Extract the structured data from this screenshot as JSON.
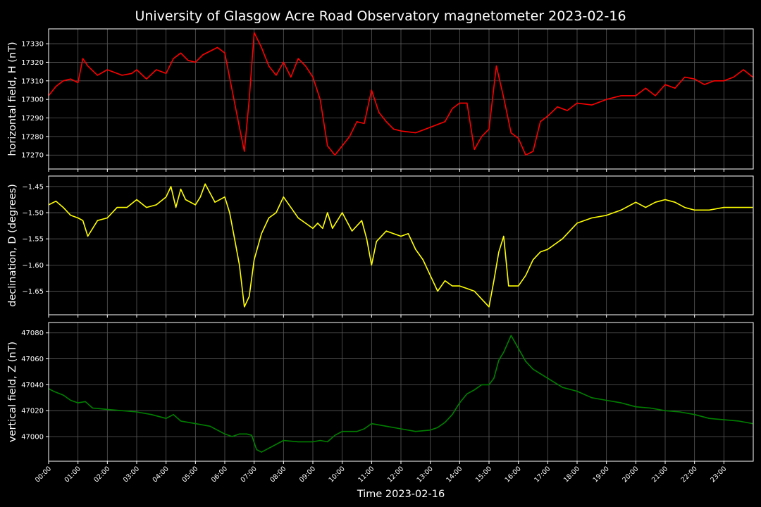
{
  "chart_data": {
    "type": "line",
    "title": "University of Glasgow Acre Road Observatory magnetometer 2023-02-16",
    "xlabel": "Time 2023-02-16",
    "x_ticks": [
      "00:00",
      "01:00",
      "02:00",
      "03:00",
      "04:00",
      "05:00",
      "06:00",
      "07:00",
      "08:00",
      "09:00",
      "10:00",
      "11:00",
      "12:00",
      "13:00",
      "14:00",
      "15:00",
      "16:00",
      "17:00",
      "18:00",
      "19:00",
      "20:00",
      "21:00",
      "22:00",
      "23:00"
    ],
    "xlim": [
      "00:00",
      "24:00"
    ],
    "grid": true,
    "panels": [
      {
        "ylabel": "horizontal field, H (nT)",
        "color": "#ff0000",
        "ylim": [
          17262.5,
          17338
        ],
        "y_ticks": [
          17270,
          17280,
          17290,
          17300,
          17310,
          17320,
          17330
        ],
        "series": [
          {
            "x": [
              "00:00",
              "00:15",
              "00:30",
              "00:45",
              "01:00",
              "01:10",
              "01:20",
              "01:40",
              "02:00",
              "02:30",
              "02:50",
              "03:00",
              "03:20",
              "03:40",
              "04:00",
              "04:15",
              "04:30",
              "04:45",
              "05:00",
              "05:15",
              "05:30",
              "05:45",
              "06:00",
              "06:15",
              "06:30",
              "06:40",
              "06:50",
              "07:00",
              "07:15",
              "07:30",
              "07:45",
              "08:00",
              "08:15",
              "08:30",
              "08:45",
              "09:00",
              "09:15",
              "09:30",
              "09:45",
              "10:00",
              "10:15",
              "10:30",
              "10:45",
              "11:00",
              "11:15",
              "11:30",
              "11:45",
              "12:00",
              "12:30",
              "13:00",
              "13:30",
              "13:45",
              "14:00",
              "14:15",
              "14:30",
              "14:45",
              "15:00",
              "15:15",
              "15:30",
              "15:45",
              "16:00",
              "16:15",
              "16:30",
              "16:45",
              "17:00",
              "17:20",
              "17:40",
              "18:00",
              "18:30",
              "19:00",
              "19:30",
              "20:00",
              "20:20",
              "20:40",
              "21:00",
              "21:20",
              "21:40",
              "22:00",
              "22:20",
              "22:40",
              "23:00",
              "23:20",
              "23:40",
              "23:59"
            ],
            "values": [
              17302,
              17307,
              17310,
              17311,
              17309,
              17322,
              17318,
              17313,
              17316,
              17313,
              17314,
              17316,
              17311,
              17316,
              17314,
              17322,
              17325,
              17321,
              17320,
              17324,
              17326,
              17328,
              17325,
              17305,
              17285,
              17272,
              17300,
              17336,
              17328,
              17318,
              17313,
              17320,
              17312,
              17322,
              17318,
              17312,
              17300,
              17275,
              17270,
              17275,
              17280,
              17288,
              17287,
              17305,
              17293,
              17288,
              17284,
              17283,
              17282,
              17285,
              17288,
              17295,
              17298,
              17298,
              17273,
              17280,
              17284,
              17318,
              17301,
              17282,
              17279,
              17270,
              17272,
              17288,
              17291,
              17296,
              17294,
              17298,
              17297,
              17300,
              17302,
              17302,
              17306,
              17302,
              17308,
              17306,
              17312,
              17311,
              17308,
              17310,
              17310,
              17312,
              17316,
              17312
            ]
          }
        ]
      },
      {
        "ylabel": "declination, D (degrees)",
        "color": "#ffff00",
        "ylim": [
          -1.695,
          -1.43
        ],
        "y_ticks": [
          -1.45,
          -1.5,
          -1.55,
          -1.6,
          -1.65
        ],
        "y_tick_labels": [
          "−1.45",
          "−1.50",
          "−1.55",
          "−1.60",
          "−1.65"
        ],
        "series": [
          {
            "x": [
              "00:00",
              "00:15",
              "00:30",
              "00:45",
              "01:00",
              "01:10",
              "01:20",
              "01:40",
              "02:00",
              "02:20",
              "02:40",
              "03:00",
              "03:20",
              "03:40",
              "04:00",
              "04:10",
              "04:20",
              "04:30",
              "04:40",
              "05:00",
              "05:10",
              "05:20",
              "05:40",
              "06:00",
              "06:10",
              "06:20",
              "06:30",
              "06:40",
              "06:50",
              "07:00",
              "07:15",
              "07:30",
              "07:45",
              "08:00",
              "08:15",
              "08:30",
              "08:45",
              "09:00",
              "09:10",
              "09:20",
              "09:30",
              "09:40",
              "10:00",
              "10:20",
              "10:40",
              "10:50",
              "11:00",
              "11:10",
              "11:30",
              "12:00",
              "12:15",
              "12:30",
              "12:45",
              "13:00",
              "13:15",
              "13:30",
              "13:45",
              "14:00",
              "14:15",
              "14:30",
              "14:45",
              "15:00",
              "15:10",
              "15:20",
              "15:30",
              "15:40",
              "16:00",
              "16:15",
              "16:30",
              "16:45",
              "17:00",
              "17:30",
              "18:00",
              "18:30",
              "19:00",
              "19:30",
              "20:00",
              "20:20",
              "20:40",
              "21:00",
              "21:20",
              "21:40",
              "22:00",
              "22:30",
              "23:00",
              "23:30",
              "23:59"
            ],
            "values": [
              -1.485,
              -1.478,
              -1.49,
              -1.505,
              -1.51,
              -1.515,
              -1.545,
              -1.515,
              -1.51,
              -1.49,
              -1.49,
              -1.475,
              -1.49,
              -1.485,
              -1.47,
              -1.45,
              -1.49,
              -1.455,
              -1.475,
              -1.485,
              -1.47,
              -1.445,
              -1.48,
              -1.47,
              -1.5,
              -1.55,
              -1.6,
              -1.68,
              -1.66,
              -1.59,
              -1.54,
              -1.51,
              -1.5,
              -1.47,
              -1.49,
              -1.51,
              -1.52,
              -1.53,
              -1.52,
              -1.53,
              -1.5,
              -1.53,
              -1.5,
              -1.535,
              -1.515,
              -1.55,
              -1.6,
              -1.555,
              -1.535,
              -1.545,
              -1.54,
              -1.57,
              -1.59,
              -1.62,
              -1.65,
              -1.63,
              -1.64,
              -1.64,
              -1.645,
              -1.65,
              -1.665,
              -1.68,
              -1.63,
              -1.575,
              -1.545,
              -1.64,
              -1.64,
              -1.62,
              -1.59,
              -1.575,
              -1.57,
              -1.55,
              -1.52,
              -1.51,
              -1.505,
              -1.495,
              -1.48,
              -1.49,
              -1.48,
              -1.475,
              -1.48,
              -1.49,
              -1.495,
              -1.495,
              -1.49,
              -1.49,
              -1.49
            ]
          }
        ]
      },
      {
        "ylabel": "vertical field, Z (nT)",
        "color": "#008000",
        "ylim": [
          46981,
          47088
        ],
        "y_ticks": [
          47000,
          47020,
          47040,
          47060,
          47080
        ],
        "series": [
          {
            "x": [
              "00:00",
              "00:10",
              "00:30",
              "00:45",
              "01:00",
              "01:15",
              "01:30",
              "02:00",
              "02:30",
              "03:00",
              "03:30",
              "04:00",
              "04:15",
              "04:30",
              "05:00",
              "05:30",
              "06:00",
              "06:15",
              "06:30",
              "06:45",
              "06:55",
              "07:05",
              "07:15",
              "07:30",
              "08:00",
              "08:30",
              "09:00",
              "09:15",
              "09:30",
              "09:45",
              "10:00",
              "10:30",
              "10:45",
              "11:00",
              "11:30",
              "12:00",
              "12:30",
              "13:00",
              "13:15",
              "13:30",
              "13:45",
              "14:00",
              "14:15",
              "14:30",
              "14:45",
              "15:00",
              "15:10",
              "15:20",
              "15:30",
              "15:45",
              "16:00",
              "16:15",
              "16:30",
              "17:00",
              "17:30",
              "18:00",
              "18:30",
              "19:00",
              "19:30",
              "20:00",
              "20:30",
              "21:00",
              "21:30",
              "22:00",
              "22:30",
              "23:00",
              "23:30",
              "23:59"
            ],
            "values": [
              47037,
              47035,
              47032,
              47028,
              47026,
              47027,
              47022,
              47021,
              47020,
              47019,
              47017,
              47014,
              47017,
              47012,
              47010,
              47008,
              47002,
              47000,
              47002,
              47002,
              47001,
              46990,
              46988,
              46991,
              46997,
              46996,
              46996,
              46997,
              46996,
              47001,
              47004,
              47004,
              47006,
              47010,
              47008,
              47006,
              47004,
              47005,
              47007,
              47011,
              47017,
              47026,
              47033,
              47036,
              47040,
              47040,
              47045,
              47059,
              47065,
              47078,
              47068,
              47058,
              47052,
              47045,
              47038,
              47035,
              47030,
              47028,
              47026,
              47023,
              47022,
              47020,
              47019,
              47017,
              47014,
              47013,
              47012,
              47010
            ]
          }
        ]
      }
    ]
  }
}
